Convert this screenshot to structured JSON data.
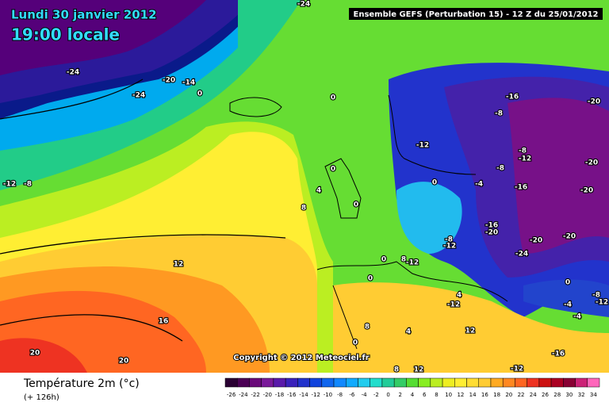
{
  "header": {
    "date": "Lundi 30 janvier 2012",
    "time": "19:00 locale",
    "model": "Ensemble GEFS (Perturbation 15)  -  12 Z du 25/01/2012"
  },
  "map": {
    "copyright": "Copyright © 2012 Meteociel.fr",
    "contour_labels": [
      -24,
      -24,
      -20,
      -14,
      0,
      -24,
      -12,
      -8,
      0,
      0,
      4,
      8,
      0,
      0,
      0,
      8,
      -12,
      -12,
      0,
      -4,
      -8,
      -16,
      -8,
      -12,
      -8,
      -16,
      -16,
      -20,
      -8,
      -12,
      -20,
      -20,
      -24,
      -20,
      -20,
      -20,
      0,
      -4,
      -8,
      -12,
      4,
      -12,
      12,
      16,
      20,
      20,
      12,
      4,
      8,
      0,
      8,
      12,
      -16,
      -12,
      -4
    ]
  },
  "footer": {
    "title": "Température 2m (°c)",
    "lead": "(+ 126h)"
  },
  "legend": {
    "ticks": [
      -26,
      -24,
      -22,
      -20,
      -18,
      -16,
      -14,
      -12,
      -10,
      -8,
      -6,
      -4,
      -2,
      0,
      2,
      4,
      6,
      8,
      10,
      12,
      14,
      16,
      18,
      20,
      22,
      24,
      26,
      28,
      30,
      32,
      34
    ]
  }
}
